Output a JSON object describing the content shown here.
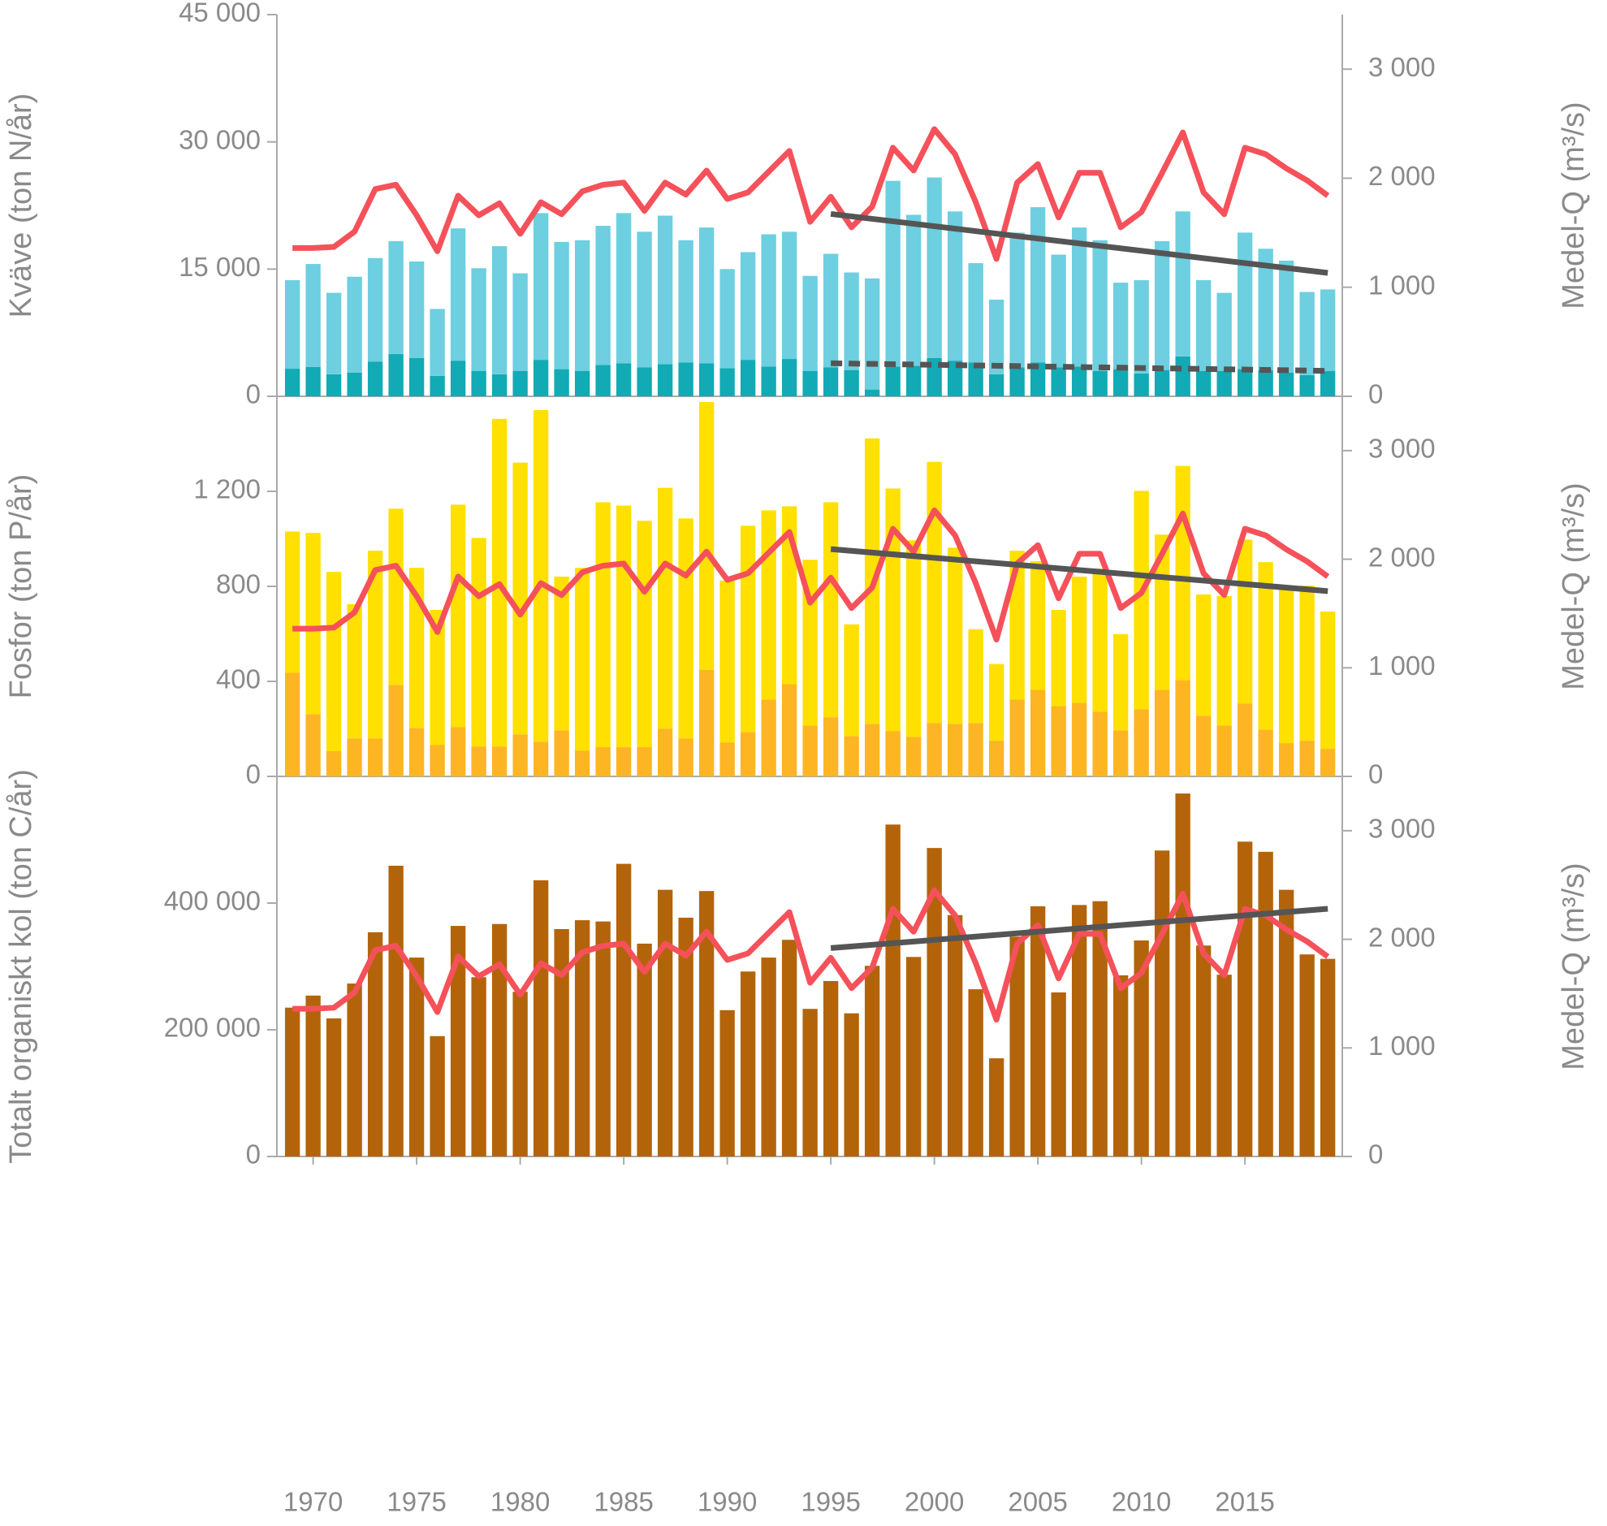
{
  "chart_data": [
    {
      "type": "bar",
      "ylabel": "Kväve (ton N/år)",
      "y2label": "Medel-Q (m³/s)",
      "x": [
        1969,
        1970,
        1971,
        1972,
        1973,
        1974,
        1975,
        1976,
        1977,
        1978,
        1979,
        1980,
        1981,
        1982,
        1983,
        1984,
        1985,
        1986,
        1987,
        1988,
        1989,
        1990,
        1991,
        1992,
        1993,
        1994,
        1995,
        1996,
        1997,
        1998,
        1999,
        2000,
        2001,
        2002,
        2003,
        2004,
        2005,
        2006,
        2007,
        2008,
        2009,
        2010,
        2011,
        2012,
        2013,
        2014,
        2015,
        2016,
        2017,
        2018,
        2019
      ],
      "xlim": [
        1968.25,
        2019.7
      ],
      "ylim": [
        0,
        45000
      ],
      "yticks": [
        0,
        {
          "value": 15000,
          "label": "15 000"
        },
        {
          "value": 30000,
          "label": "30 000"
        },
        {
          "value": 45000,
          "label": "45 000"
        }
      ],
      "y2lim": [
        0,
        3500
      ],
      "y2ticks": [
        0,
        {
          "value": 1000,
          "label": "1 000"
        },
        {
          "value": 2000,
          "label": "2 000"
        },
        {
          "value": 3000,
          "label": "3 000"
        }
      ],
      "series": [
        {
          "type": "bar",
          "color": "#12aab4",
          "values": [
            3250,
            3450,
            2600,
            2800,
            4100,
            5000,
            4500,
            2400,
            4200,
            3000,
            2600,
            3000,
            4300,
            3200,
            3000,
            3700,
            3900,
            3400,
            3800,
            4000,
            3900,
            3300,
            4300,
            3500,
            4400,
            3000,
            3400,
            3100,
            800,
            3500,
            3600,
            4500,
            4200,
            4000,
            2600,
            3400,
            4000,
            3400,
            3500,
            3000,
            3200,
            2700,
            3100,
            4700,
            3000,
            3000,
            3200,
            3100,
            2800,
            2500,
            3000
          ]
        },
        {
          "type": "bar",
          "color": "#6dcfe0",
          "values": [
            10450,
            12150,
            9600,
            11300,
            12200,
            13300,
            11400,
            7900,
            15600,
            12100,
            15100,
            11500,
            17300,
            15000,
            15400,
            16400,
            17700,
            16000,
            17500,
            14400,
            16000,
            11700,
            12700,
            15600,
            15000,
            11200,
            13400,
            11500,
            13100,
            21900,
            17800,
            21300,
            17600,
            11700,
            8800,
            15900,
            18300,
            13300,
            16400,
            15400,
            10200,
            11000,
            15200,
            17100,
            10700,
            9200,
            16100,
            14300,
            13200,
            9800,
            9600
          ]
        },
        {
          "type": "line",
          "axis": "y2",
          "color": "#f5515a",
          "values": [
            1360,
            1360,
            1370,
            1510,
            1900,
            1940,
            1660,
            1330,
            1840,
            1660,
            1770,
            1490,
            1780,
            1670,
            1880,
            1940,
            1960,
            1700,
            1960,
            1850,
            2070,
            1810,
            1870,
            2060,
            2250,
            1600,
            1830,
            1550,
            1740,
            2280,
            2070,
            2450,
            2220,
            1780,
            1260,
            1960,
            2130,
            1640,
            2050,
            2050,
            1550,
            1690,
            2050,
            2420,
            1870,
            1670,
            2280,
            2220,
            2090,
            1980,
            1840
          ]
        },
        {
          "type": "line",
          "color": "#555555",
          "x": [
            1995,
            2019
          ],
          "values": [
            21500,
            14550
          ]
        },
        {
          "type": "line",
          "color": "#555555",
          "dashed": true,
          "x": [
            1995,
            2019
          ],
          "values": [
            3900,
            3000
          ]
        }
      ]
    },
    {
      "type": "bar",
      "ylabel": "Fosfor (ton P/år)",
      "y2label": "Medel-Q (m³/s)",
      "x": [
        1969,
        1970,
        1971,
        1972,
        1973,
        1974,
        1975,
        1976,
        1977,
        1978,
        1979,
        1980,
        1981,
        1982,
        1983,
        1984,
        1985,
        1986,
        1987,
        1988,
        1989,
        1990,
        1991,
        1992,
        1993,
        1994,
        1995,
        1996,
        1997,
        1998,
        1999,
        2000,
        2001,
        2002,
        2003,
        2004,
        2005,
        2006,
        2007,
        2008,
        2009,
        2010,
        2011,
        2012,
        2013,
        2014,
        2015,
        2016,
        2017,
        2018,
        2019
      ],
      "xlim": [
        1968.25,
        2019.7
      ],
      "ylim": [
        0,
        1600
      ],
      "yticks": [
        0,
        400,
        800,
        {
          "value": 1200,
          "label": "1 200"
        }
      ],
      "y2lim": [
        0,
        3500
      ],
      "y2ticks": [
        0,
        {
          "value": 1000,
          "label": "1 000"
        },
        {
          "value": 2000,
          "label": "2 000"
        },
        {
          "value": 3000,
          "label": "3 000"
        }
      ],
      "series": [
        {
          "type": "bar",
          "color": "#fdb523",
          "values": [
            436,
            262,
            106,
            160,
            160,
            385,
            204,
            133,
            208,
            126,
            126,
            177,
            146,
            194,
            109,
            123,
            123,
            123,
            201,
            160,
            449,
            143,
            187,
            323,
            388,
            214,
            249,
            170,
            221,
            191,
            167,
            225,
            221,
            225,
            150,
            323,
            364,
            296,
            310,
            272,
            194,
            283,
            364,
            405,
            255,
            214,
            306,
            197,
            140,
            150,
            116
          ]
        },
        {
          "type": "bar",
          "color": "#ffe000",
          "values": [
            595,
            763,
            755,
            565,
            790,
            742,
            674,
            568,
            936,
            878,
            1379,
            1144,
            1396,
            647,
            769,
            1031,
            1017,
            953,
            1014,
            926,
            1127,
            681,
            868,
            797,
            749,
            698,
            905,
            470,
            1202,
            1021,
            827,
            1099,
            742,
            395,
            323,
            627,
            542,
            405,
            531,
            603,
            405,
            919,
            654,
            902,
            511,
            545,
            691,
            705,
            663,
            653,
            578
          ]
        },
        {
          "type": "line",
          "axis": "y2",
          "color": "#f5515a",
          "values": [
            1360,
            1360,
            1370,
            1510,
            1900,
            1940,
            1660,
            1330,
            1840,
            1660,
            1770,
            1490,
            1780,
            1670,
            1880,
            1940,
            1960,
            1700,
            1960,
            1850,
            2070,
            1810,
            1870,
            2060,
            2250,
            1600,
            1830,
            1550,
            1740,
            2280,
            2070,
            2450,
            2220,
            1780,
            1260,
            1960,
            2130,
            1640,
            2050,
            2050,
            1550,
            1690,
            2050,
            2420,
            1870,
            1670,
            2280,
            2220,
            2090,
            1980,
            1840
          ]
        },
        {
          "type": "line",
          "color": "#555555",
          "x": [
            1995,
            2019
          ],
          "values": [
            957,
            780
          ]
        }
      ]
    },
    {
      "type": "bar",
      "ylabel": "Totalt organiskt kol (ton C/år)",
      "y2label": "Medel-Q (m³/s)",
      "x": [
        1969,
        1970,
        1971,
        1972,
        1973,
        1974,
        1975,
        1976,
        1977,
        1978,
        1979,
        1980,
        1981,
        1982,
        1983,
        1984,
        1985,
        1986,
        1987,
        1988,
        1989,
        1990,
        1991,
        1992,
        1993,
        1994,
        1995,
        1996,
        1997,
        1998,
        1999,
        2000,
        2001,
        2002,
        2003,
        2004,
        2005,
        2006,
        2007,
        2008,
        2009,
        2010,
        2011,
        2012,
        2013,
        2014,
        2015,
        2016,
        2017,
        2018,
        2019
      ],
      "xlim": [
        1968.25,
        2019.7
      ],
      "xticks": [
        1970,
        1975,
        1980,
        1985,
        1990,
        1995,
        2000,
        2005,
        2010,
        2015
      ],
      "ylim": [
        0,
        600000
      ],
      "yticks": [
        0,
        {
          "value": 200000,
          "label": "200 000"
        },
        {
          "value": 400000,
          "label": "400 000"
        }
      ],
      "y2lim": [
        0,
        3500
      ],
      "y2ticks": [
        0,
        {
          "value": 1000,
          "label": "1 000"
        },
        {
          "value": 2000,
          "label": "2 000"
        },
        {
          "value": 3000,
          "label": "3 000"
        }
      ],
      "series": [
        {
          "type": "bar",
          "color": "#b3640a",
          "values": [
            235000,
            254000,
            218000,
            273000,
            354000,
            459000,
            314000,
            190000,
            364000,
            283000,
            367000,
            260000,
            436000,
            359000,
            373000,
            371000,
            462000,
            336000,
            421000,
            377000,
            419000,
            231000,
            292000,
            314000,
            342000,
            233000,
            277000,
            226000,
            301000,
            524000,
            315000,
            487000,
            381000,
            264000,
            155000,
            347000,
            395000,
            259000,
            397000,
            403000,
            286000,
            341000,
            483000,
            573000,
            333000,
            287000,
            497000,
            481000,
            421000,
            319000,
            312000
          ]
        },
        {
          "type": "line",
          "axis": "y2",
          "color": "#f5515a",
          "values": [
            1360,
            1360,
            1370,
            1510,
            1900,
            1940,
            1660,
            1330,
            1840,
            1660,
            1770,
            1490,
            1780,
            1670,
            1880,
            1940,
            1960,
            1700,
            1960,
            1850,
            2070,
            1810,
            1870,
            2060,
            2250,
            1600,
            1830,
            1550,
            1740,
            2280,
            2070,
            2450,
            2220,
            1780,
            1260,
            1960,
            2130,
            1640,
            2050,
            2050,
            1550,
            1690,
            2050,
            2420,
            1870,
            1670,
            2280,
            2220,
            2090,
            1980,
            1840
          ]
        },
        {
          "type": "line",
          "color": "#555555",
          "x": [
            1995,
            2019
          ],
          "values": [
            329000,
            391000
          ]
        }
      ]
    }
  ]
}
